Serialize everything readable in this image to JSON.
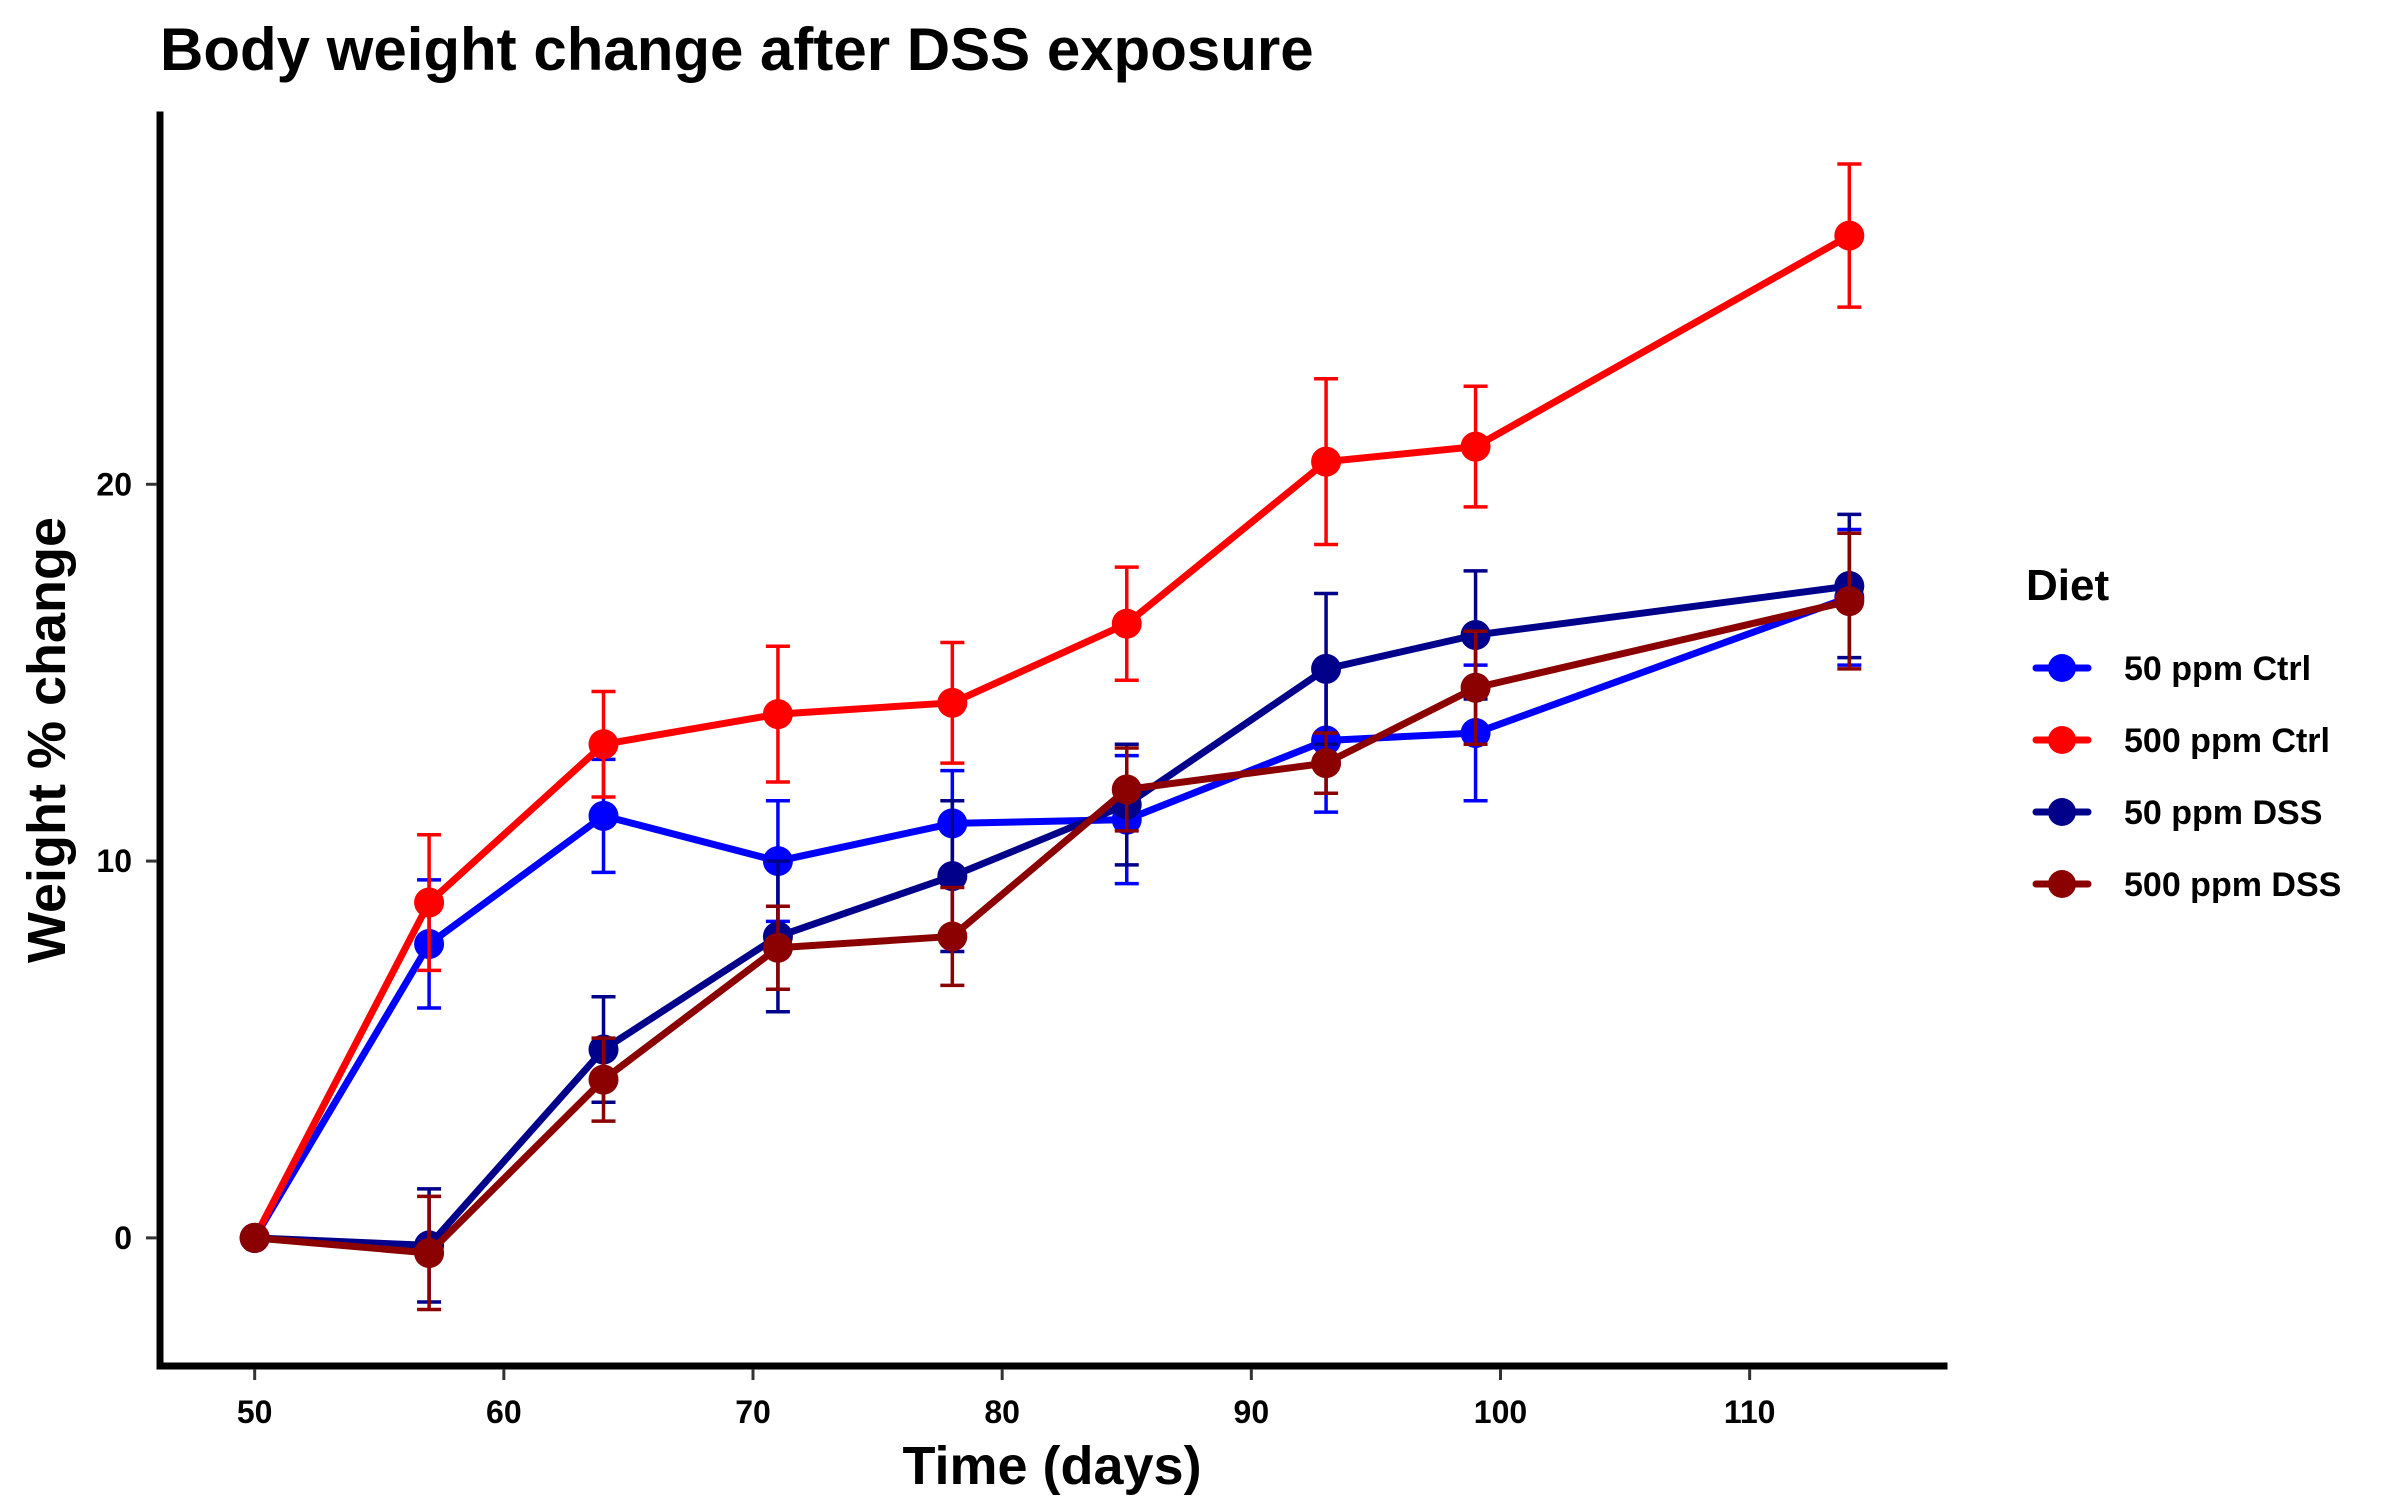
{
  "chart_data": {
    "type": "line",
    "title": "Body weight change after DSS exposure",
    "xlabel": "Time (days)",
    "ylabel": "Weight % change",
    "xlim": [
      46.2,
      117.8
    ],
    "ylim": [
      -3.4,
      29.8
    ],
    "xticks": [
      50,
      60,
      70,
      80,
      90,
      100,
      110
    ],
    "yticks": [
      0,
      10,
      20
    ],
    "x": [
      50,
      57,
      64,
      71,
      78,
      85,
      93,
      99,
      114
    ],
    "grid": false,
    "legend_title": "Diet",
    "legend_position": "right",
    "error_bars": true,
    "series": [
      {
        "name": "50 ppm Ctrl",
        "color": "#0000ff",
        "values": [
          0,
          7.8,
          11.2,
          10.0,
          11.0,
          11.1,
          13.2,
          13.4,
          17.0
        ],
        "errors": [
          0,
          1.7,
          1.5,
          1.6,
          1.4,
          1.7,
          1.9,
          1.8,
          1.8
        ]
      },
      {
        "name": "500 ppm Ctrl",
        "color": "#ff0000",
        "values": [
          0,
          8.9,
          13.1,
          13.9,
          14.2,
          16.3,
          20.6,
          21.0,
          26.6
        ],
        "errors": [
          0,
          1.8,
          1.4,
          1.8,
          1.6,
          1.5,
          2.2,
          1.6,
          1.9
        ]
      },
      {
        "name": "50 ppm DSS",
        "color": "#00008b",
        "values": [
          0,
          -0.2,
          5.0,
          8.0,
          9.6,
          11.5,
          15.1,
          16.0,
          17.3
        ],
        "errors": [
          0,
          1.5,
          1.4,
          2.0,
          2.0,
          1.6,
          2.0,
          1.7,
          1.9
        ]
      },
      {
        "name": "500 ppm DSS",
        "color": "#8b0000",
        "values": [
          0,
          -0.4,
          4.2,
          7.7,
          8.0,
          11.9,
          12.6,
          14.6,
          16.9
        ],
        "errors": [
          0,
          1.5,
          1.1,
          1.1,
          1.3,
          1.1,
          0.8,
          1.5,
          1.8
        ]
      }
    ]
  }
}
